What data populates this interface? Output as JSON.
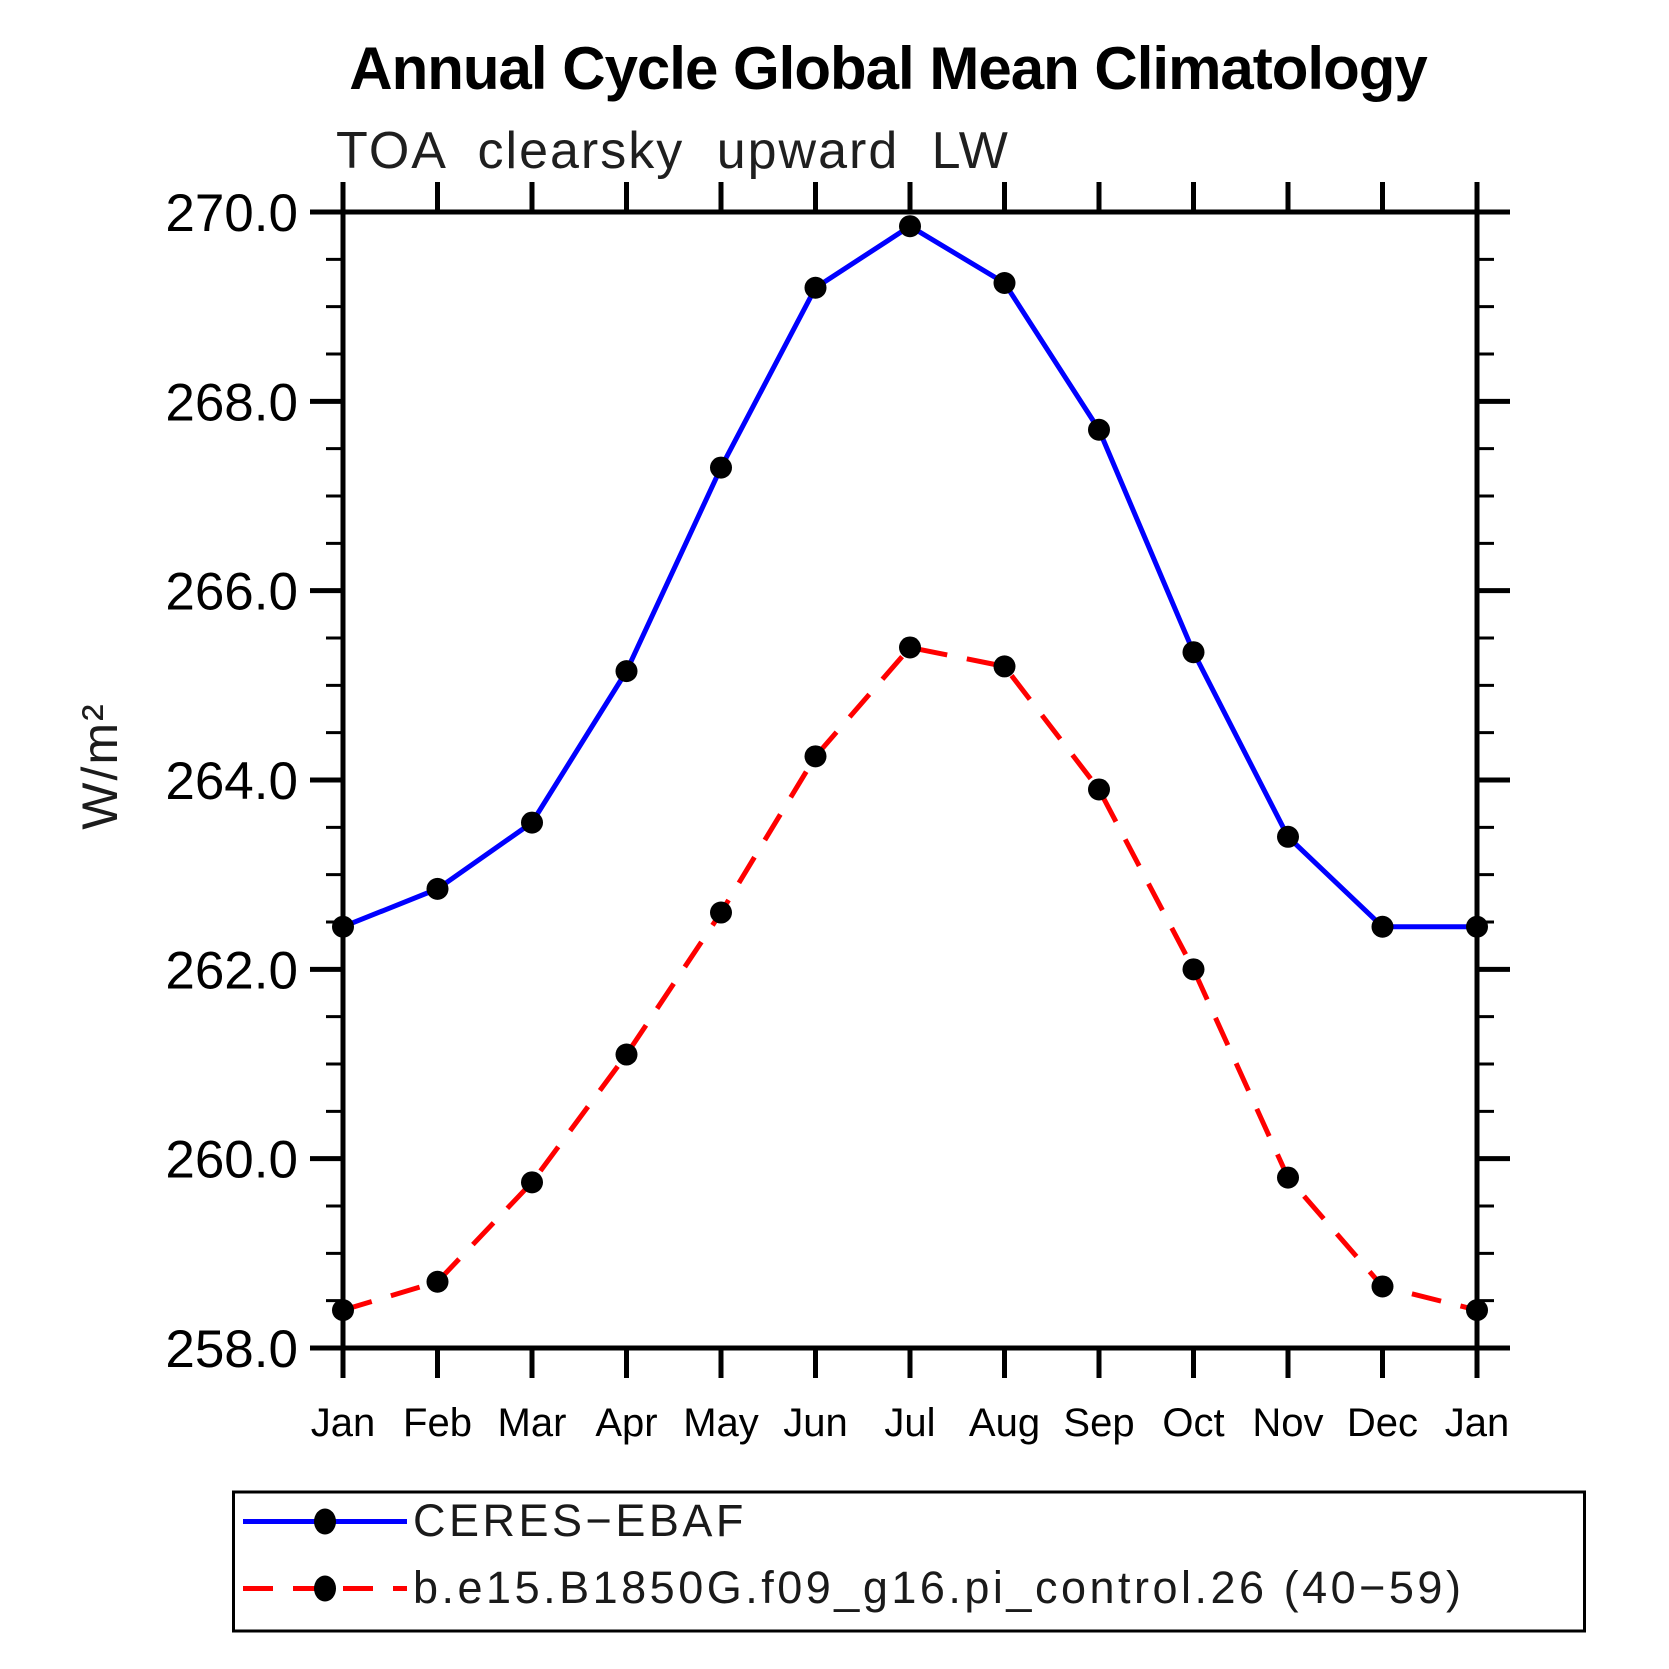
{
  "title": "Annual Cycle Global Mean Climatology",
  "subtitle": "TOA clearsky upward LW",
  "chart_data": {
    "type": "line",
    "title": "Annual Cycle Global Mean Climatology",
    "subtitle": "TOA clearsky upward LW",
    "ylabel": "W/m²",
    "xlabel": "",
    "x_categories": [
      "Jan",
      "Feb",
      "Mar",
      "Apr",
      "May",
      "Jun",
      "Jul",
      "Aug",
      "Sep",
      "Oct",
      "Nov",
      "Dec",
      "Jan"
    ],
    "ylim": [
      258.0,
      270.0
    ],
    "y_major_step": 2.0,
    "y_minor_step": 0.5,
    "y_tick_labels": [
      "258.0",
      "260.0",
      "262.0",
      "264.0",
      "266.0",
      "268.0",
      "270.0"
    ],
    "grid": false,
    "legend_position": "bottom-left",
    "axis_color": "#000000",
    "marker_color": "#000000",
    "series": [
      {
        "name": "CERES−EBAF",
        "color": "#0000ff",
        "line_style": "solid",
        "marker": "circle",
        "values": [
          262.45,
          262.85,
          263.55,
          265.15,
          267.3,
          269.2,
          269.85,
          269.25,
          267.7,
          265.35,
          263.4,
          262.45,
          262.45
        ]
      },
      {
        "name": "b.e15.B1850G.f09_g16.pi_control.26 (40−59)",
        "color": "#ff0000",
        "line_style": "dashed",
        "marker": "circle",
        "values": [
          258.4,
          258.7,
          259.75,
          261.1,
          262.6,
          264.25,
          265.4,
          265.2,
          263.9,
          262.0,
          259.8,
          258.65,
          258.4
        ]
      }
    ]
  }
}
